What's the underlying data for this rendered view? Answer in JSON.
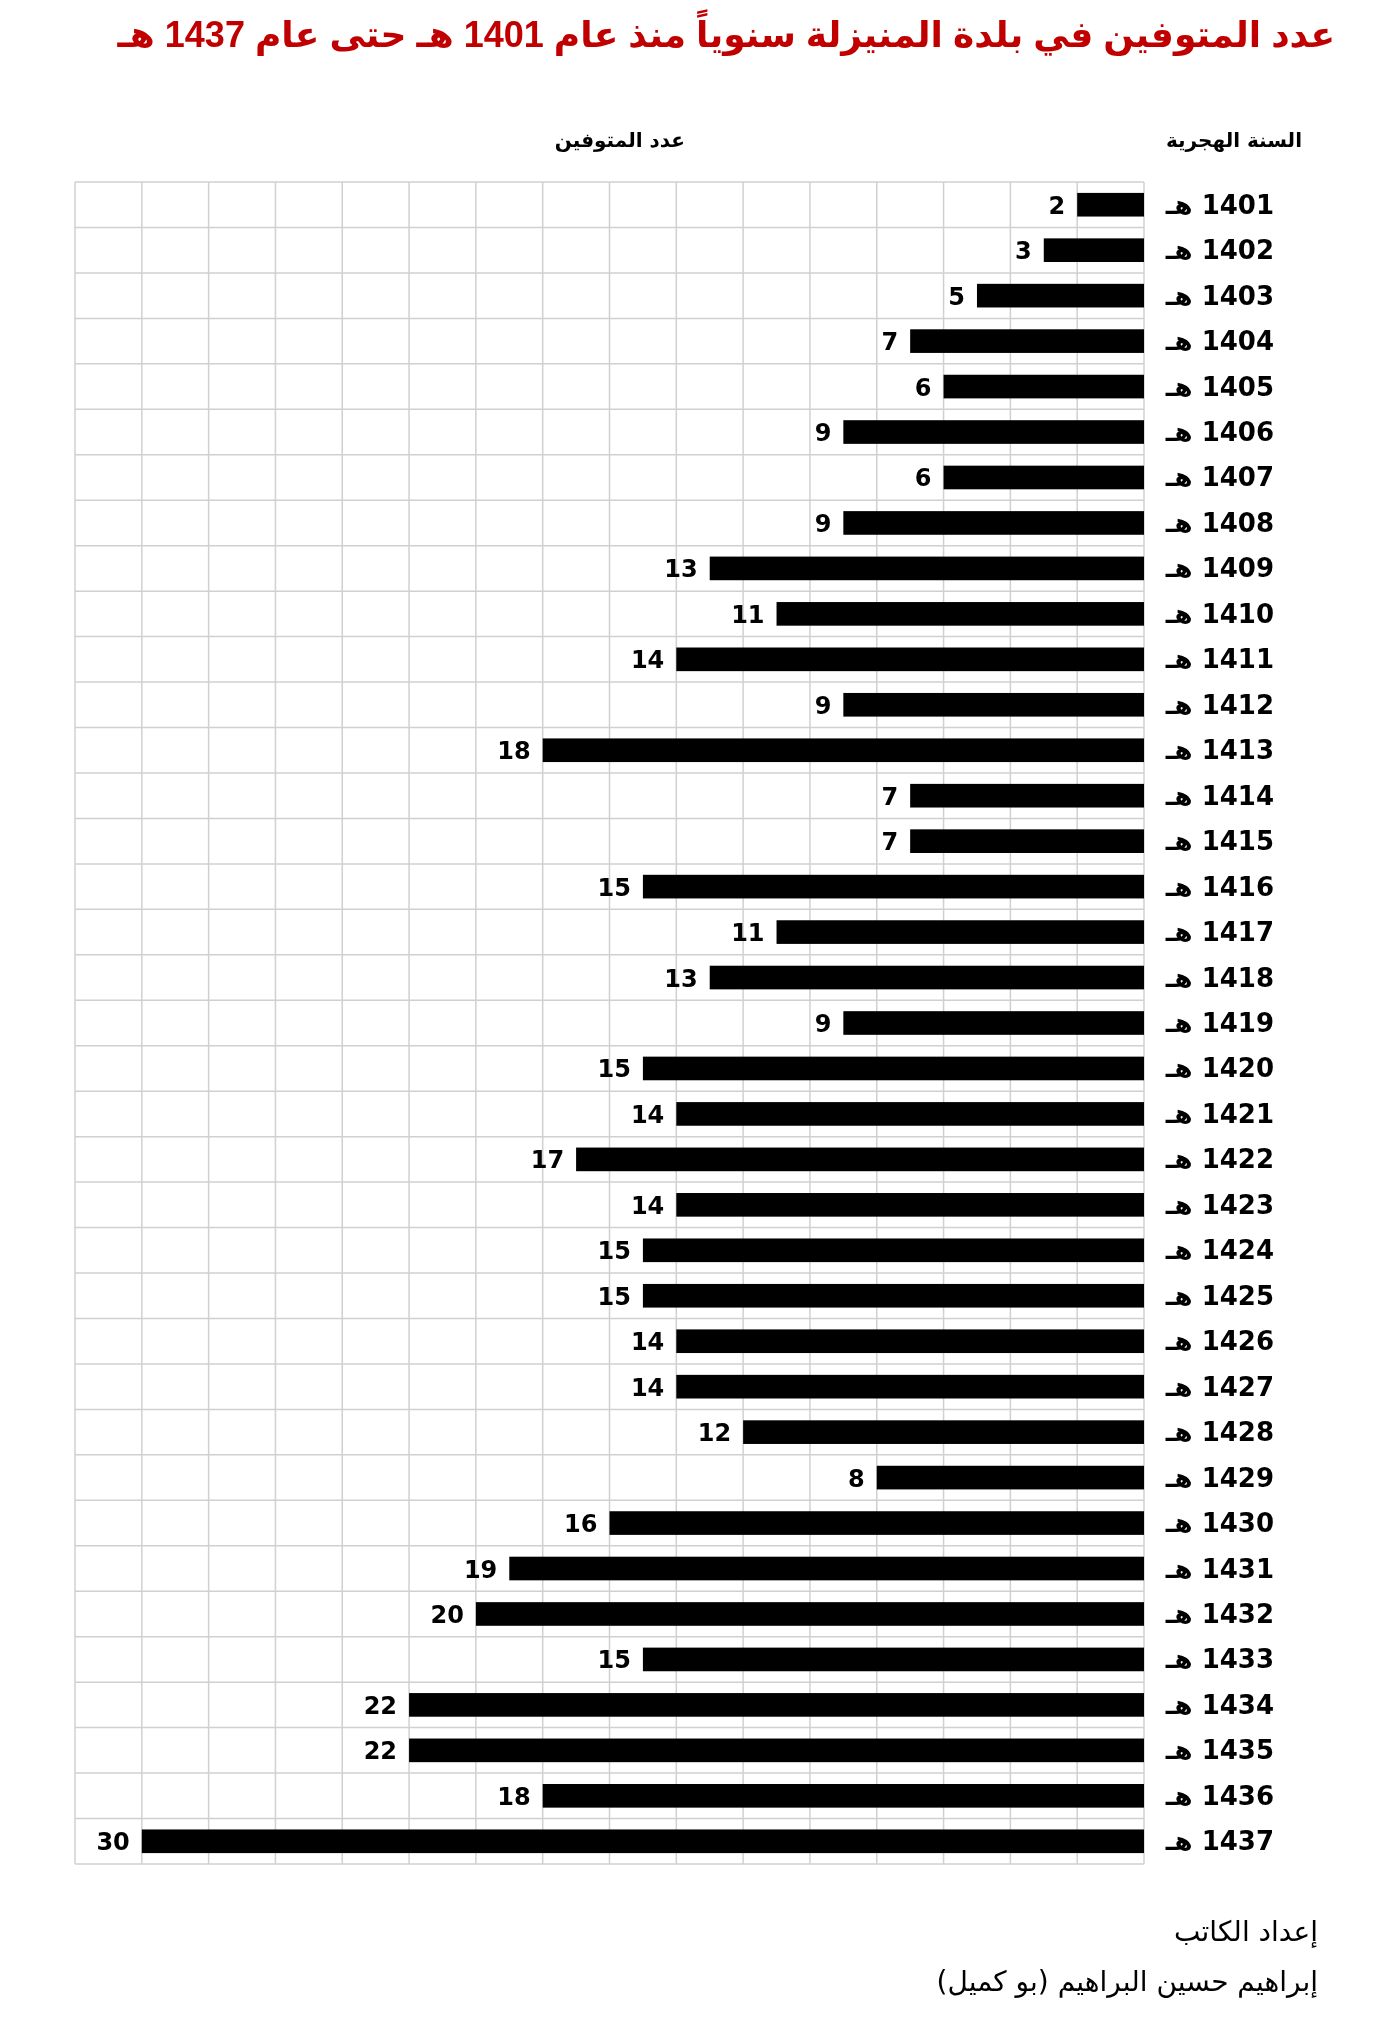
{
  "chart_data": {
    "type": "bar",
    "orientation": "horizontal",
    "title": "عدد المتوفين في بلدة المنيزلة سنوياً منذ عام **1401** هـ حتى عام **1437** هـ",
    "xlabel": "عدد المتوفين",
    "ylabel": "السنة الهجرية",
    "categories": [
      "1401 هـ",
      "1402 هـ",
      "1403 هـ",
      "1404 هـ",
      "1405 هـ",
      "1406 هـ",
      "1407 هـ",
      "1408 هـ",
      "1409 هـ",
      "1410 هـ",
      "1411 هـ",
      "1412 هـ",
      "1413 هـ",
      "1414 هـ",
      "1415 هـ",
      "1416 هـ",
      "1417 هـ",
      "1418 هـ",
      "1419 هـ",
      "1420 هـ",
      "1421 هـ",
      "1422 هـ",
      "1423 هـ",
      "1424 هـ",
      "1425 هـ",
      "1426 هـ",
      "1427 هـ",
      "1428 هـ",
      "1429 هـ",
      "1430 هـ",
      "1431 هـ",
      "1432 هـ",
      "1433 هـ",
      "1434 هـ",
      "1435 هـ",
      "1436 هـ",
      "1437 هـ"
    ],
    "values": [
      2,
      3,
      5,
      7,
      6,
      9,
      6,
      9,
      13,
      11,
      14,
      9,
      18,
      7,
      7,
      15,
      11,
      13,
      9,
      15,
      14,
      17,
      14,
      15,
      15,
      14,
      14,
      12,
      8,
      16,
      19,
      20,
      15,
      22,
      22,
      18,
      30
    ],
    "color": "#000000",
    "data_labels": true,
    "grid": true,
    "tick_labels": "y",
    "xlim": [
      32,
      0
    ],
    "xticks": [
      {
        "value": 32,
        "label": null
      },
      {
        "value": 30,
        "label": null
      },
      {
        "value": 28,
        "label": null
      },
      {
        "value": 26,
        "label": null
      },
      {
        "value": 24,
        "label": null
      },
      {
        "value": 22,
        "label": null
      },
      {
        "value": 20,
        "label": null
      },
      {
        "value": 18,
        "label": null
      },
      {
        "value": 16,
        "label": null
      },
      {
        "value": 14,
        "label": null
      },
      {
        "value": 12,
        "label": null
      },
      {
        "value": 10,
        "label": null
      },
      {
        "value": 8,
        "label": null
      },
      {
        "value": 6,
        "label": null
      },
      {
        "value": 4,
        "label": null
      },
      {
        "value": 2,
        "label": null
      },
      {
        "value": 0,
        "label": null
      }
    ],
    "annotations": [
      "إعداد الكاتب",
      "إبراهيم حسين البراهيم (بو كميل)"
    ]
  }
}
